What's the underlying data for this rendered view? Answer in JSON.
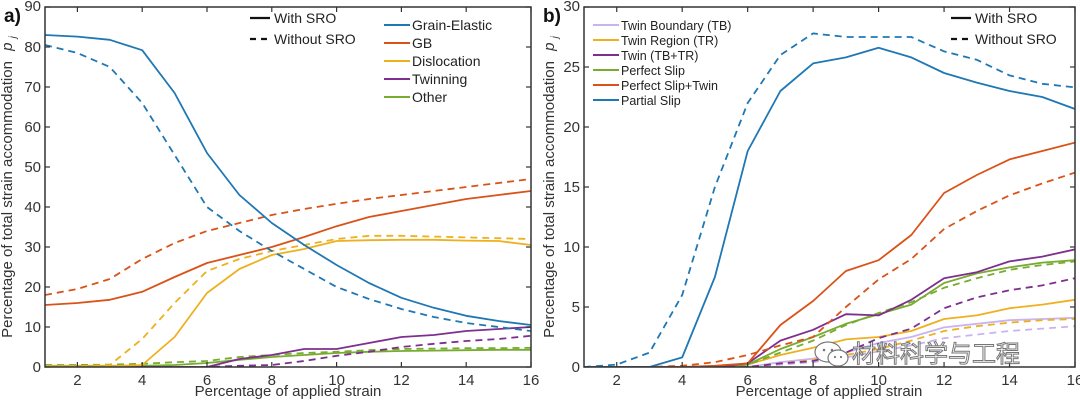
{
  "chart_data": [
    {
      "type": "line",
      "panel_label": "a)",
      "xlabel": "Percentage of applied strain",
      "ylabel": "Percentage of total strain accommodation",
      "ylabel_symbol": "p",
      "ylabel_subscript": "j",
      "xlim": [
        1,
        16
      ],
      "ylim": [
        0,
        90
      ],
      "xticks": [
        2,
        4,
        6,
        8,
        10,
        12,
        14,
        16
      ],
      "yticks": [
        0,
        10,
        20,
        30,
        40,
        50,
        60,
        70,
        80,
        90
      ],
      "grid": false,
      "style_legend": {
        "placement": "top-center",
        "entries": [
          {
            "label": "With SRO",
            "dash": "solid"
          },
          {
            "label": "Without SRO",
            "dash": "dashed"
          }
        ]
      },
      "color_legend": {
        "placement": "top-right",
        "entries": [
          {
            "label": "Grain-Elastic",
            "color": "#1f77b4"
          },
          {
            "label": "GB",
            "color": "#d95319"
          },
          {
            "label": "Dislocation",
            "color": "#edb120"
          },
          {
            "label": "Twinning",
            "color": "#7e2f8e"
          },
          {
            "label": "Other",
            "color": "#77ac30"
          }
        ]
      },
      "x": [
        1,
        2,
        3,
        4,
        5,
        6,
        7,
        8,
        9,
        10,
        11,
        12,
        13,
        14,
        15,
        16
      ],
      "series": [
        {
          "name": "Grain-Elastic",
          "sro": "With SRO",
          "color": "#1f77b4",
          "dash": "solid",
          "values": [
            83,
            82.6,
            81.8,
            79.2,
            68.5,
            53.5,
            43,
            36,
            30.5,
            25.5,
            21,
            17.3,
            14.8,
            12.8,
            11.5,
            10.5
          ]
        },
        {
          "name": "Grain-Elastic",
          "sro": "Without SRO",
          "color": "#1f77b4",
          "dash": "dashed",
          "values": [
            80.5,
            78.5,
            75,
            66,
            53,
            40,
            34,
            29,
            24.5,
            20,
            17,
            14.5,
            12.5,
            11,
            10,
            9
          ]
        },
        {
          "name": "GB",
          "sro": "With SRO",
          "color": "#d95319",
          "dash": "solid",
          "values": [
            15.5,
            16,
            16.8,
            18.8,
            22.5,
            26,
            28,
            30,
            32.5,
            35.2,
            37.5,
            39,
            40.5,
            42,
            43,
            44
          ]
        },
        {
          "name": "GB",
          "sro": "Without SRO",
          "color": "#d95319",
          "dash": "dashed",
          "values": [
            18,
            19.5,
            22,
            27,
            31,
            34,
            36,
            38,
            39.5,
            40.8,
            42,
            43,
            44,
            45,
            46,
            47
          ]
        },
        {
          "name": "Dislocation",
          "sro": "With SRO",
          "color": "#edb120",
          "dash": "solid",
          "values": [
            0.2,
            0.2,
            0.2,
            0.5,
            7.5,
            18.5,
            24.5,
            28,
            29.5,
            31.5,
            31.7,
            31.8,
            31.8,
            31.6,
            31.5,
            30.5
          ]
        },
        {
          "name": "Dislocation",
          "sro": "Without SRO",
          "color": "#edb120",
          "dash": "dashed",
          "values": [
            0.2,
            0.2,
            0.5,
            7,
            16,
            24,
            27,
            29,
            30.5,
            32,
            32.8,
            32.8,
            32.6,
            32.4,
            32.2,
            32
          ]
        },
        {
          "name": "Twinning",
          "sro": "With SRO",
          "color": "#7e2f8e",
          "dash": "solid",
          "values": [
            0,
            0,
            0,
            0,
            0,
            0,
            2,
            3,
            4.5,
            4.5,
            6,
            7.5,
            8,
            9,
            9.5,
            10
          ]
        },
        {
          "name": "Twinning",
          "sro": "Without SRO",
          "color": "#7e2f8e",
          "dash": "dashed",
          "values": [
            0,
            0,
            0,
            0,
            0,
            0,
            0.3,
            0.5,
            1.5,
            2.8,
            3.8,
            5,
            5.8,
            6.5,
            7,
            7.8
          ]
        },
        {
          "name": "Other",
          "sro": "With SRO",
          "color": "#77ac30",
          "dash": "solid",
          "values": [
            0.3,
            0.3,
            0.3,
            0.3,
            0.5,
            1,
            1.8,
            2.5,
            3,
            3.5,
            3.8,
            4,
            4.1,
            4.2,
            4.3,
            4.3
          ]
        },
        {
          "name": "Other",
          "sro": "Without SRO",
          "color": "#77ac30",
          "dash": "dashed",
          "values": [
            0.5,
            0.5,
            0.6,
            0.8,
            1.2,
            1.5,
            2.5,
            3,
            3.5,
            3.8,
            4.2,
            4.5,
            4.6,
            4.7,
            4.7,
            4.8
          ]
        }
      ]
    },
    {
      "type": "line",
      "panel_label": "b)",
      "xlabel": "Percentage of applied strain",
      "ylabel": "Percentage of total strain accommodation",
      "ylabel_symbol": "p",
      "ylabel_subscript": "j",
      "xlim": [
        1,
        16
      ],
      "ylim": [
        0,
        30
      ],
      "xticks": [
        2,
        4,
        6,
        8,
        10,
        12,
        14,
        16
      ],
      "yticks": [
        0,
        5,
        10,
        15,
        20,
        25,
        30
      ],
      "grid": false,
      "style_legend": {
        "placement": "top-right",
        "entries": [
          {
            "label": "With SRO",
            "dash": "solid"
          },
          {
            "label": "Without SRO",
            "dash": "dashed"
          }
        ]
      },
      "color_legend": {
        "placement": "top-left",
        "entries": [
          {
            "label": "Twin Boundary (TB)",
            "color": "#c8b4f0"
          },
          {
            "label": "Twin Region (TR)",
            "color": "#edb120"
          },
          {
            "label": "Twin (TB+TR)",
            "color": "#7e2f8e"
          },
          {
            "label": "Perfect Slip",
            "color": "#77ac30"
          },
          {
            "label": "Perfect Slip+Twin",
            "color": "#d95319"
          },
          {
            "label": "Partial Slip",
            "color": "#1f77b4"
          }
        ]
      },
      "x": [
        1,
        2,
        3,
        4,
        5,
        6,
        7,
        8,
        9,
        10,
        11,
        12,
        13,
        14,
        15,
        16
      ],
      "series": [
        {
          "name": "Partial Slip",
          "sro": "With SRO",
          "color": "#1f77b4",
          "dash": "solid",
          "values": [
            0,
            0,
            0,
            0.8,
            7.5,
            18,
            23,
            25.3,
            25.8,
            26.6,
            25.8,
            24.5,
            23.7,
            23,
            22.5,
            21.5
          ]
        },
        {
          "name": "Partial Slip",
          "sro": "Without SRO",
          "color": "#1f77b4",
          "dash": "dashed",
          "values": [
            0,
            0.2,
            1.2,
            6,
            15,
            22,
            26,
            27.8,
            27.5,
            27.5,
            27.5,
            26.3,
            25.6,
            24.3,
            23.6,
            23.3
          ]
        },
        {
          "name": "Perfect Slip+Twin",
          "sro": "With SRO",
          "color": "#d95319",
          "dash": "solid",
          "values": [
            0,
            0,
            0,
            0,
            0.1,
            0.3,
            3.5,
            5.5,
            8,
            8.9,
            11,
            14.5,
            16,
            17.3,
            18,
            18.7
          ]
        },
        {
          "name": "Perfect Slip+Twin",
          "sro": "Without SRO",
          "color": "#d95319",
          "dash": "dashed",
          "values": [
            0,
            0,
            0,
            0.1,
            0.4,
            1,
            1.8,
            2.5,
            5,
            7.3,
            9,
            11.5,
            13,
            14.3,
            15.3,
            16.2
          ]
        },
        {
          "name": "Twin (TB+TR)",
          "sro": "With SRO",
          "color": "#7e2f8e",
          "dash": "solid",
          "values": [
            0,
            0,
            0,
            0,
            0,
            0.3,
            2.2,
            3.1,
            4.4,
            4.3,
            5.6,
            7.4,
            7.9,
            8.8,
            9.2,
            9.8
          ]
        },
        {
          "name": "Twin (TB+TR)",
          "sro": "Without SRO",
          "color": "#7e2f8e",
          "dash": "dashed",
          "values": [
            0,
            0,
            0,
            0,
            0,
            0,
            0.3,
            0.5,
            1.2,
            2.4,
            3.2,
            4.9,
            5.8,
            6.4,
            6.8,
            7.4
          ]
        },
        {
          "name": "Perfect Slip",
          "sro": "With SRO",
          "color": "#77ac30",
          "dash": "solid",
          "values": [
            0,
            0,
            0,
            0,
            0,
            0.2,
            1.5,
            2.5,
            3.6,
            4.4,
            5.2,
            7,
            7.8,
            8.3,
            8.7,
            8.9
          ]
        },
        {
          "name": "Perfect Slip",
          "sro": "Without SRO",
          "color": "#77ac30",
          "dash": "dashed",
          "values": [
            0,
            0,
            0,
            0,
            0,
            0.2,
            1.2,
            2.2,
            3.5,
            4.5,
            5.4,
            6.6,
            7.4,
            8.1,
            8.5,
            8.8
          ]
        },
        {
          "name": "Twin Region (TR)",
          "sro": "With SRO",
          "color": "#edb120",
          "dash": "solid",
          "values": [
            0,
            0,
            0,
            0,
            0,
            0.2,
            1,
            1.6,
            2.3,
            2.5,
            3,
            4,
            4.3,
            4.9,
            5.2,
            5.6
          ]
        },
        {
          "name": "Twin Region (TR)",
          "sro": "Without SRO",
          "color": "#edb120",
          "dash": "dashed",
          "values": [
            0,
            0,
            0,
            0,
            0,
            0,
            0.3,
            0.6,
            1,
            1.5,
            2.2,
            3,
            3.4,
            3.7,
            3.9,
            4
          ]
        },
        {
          "name": "Twin Boundary (TB)",
          "sro": "With SRO",
          "color": "#c8b4f0",
          "dash": "solid",
          "values": [
            0,
            0,
            0,
            0,
            0,
            0,
            0.4,
            0.7,
            1.2,
            2,
            2.5,
            3.3,
            3.6,
            3.9,
            4,
            4.1
          ]
        },
        {
          "name": "Twin Boundary (TB)",
          "sro": "Without SRO",
          "color": "#c8b4f0",
          "dash": "dashed",
          "values": [
            0,
            0,
            0,
            0,
            0,
            0,
            0.2,
            0.4,
            0.8,
            1.3,
            1.8,
            2.4,
            2.7,
            3,
            3.2,
            3.4
          ]
        }
      ]
    }
  ],
  "watermark": {
    "text": "材料科学与工程",
    "icon": "wechat-icon"
  }
}
